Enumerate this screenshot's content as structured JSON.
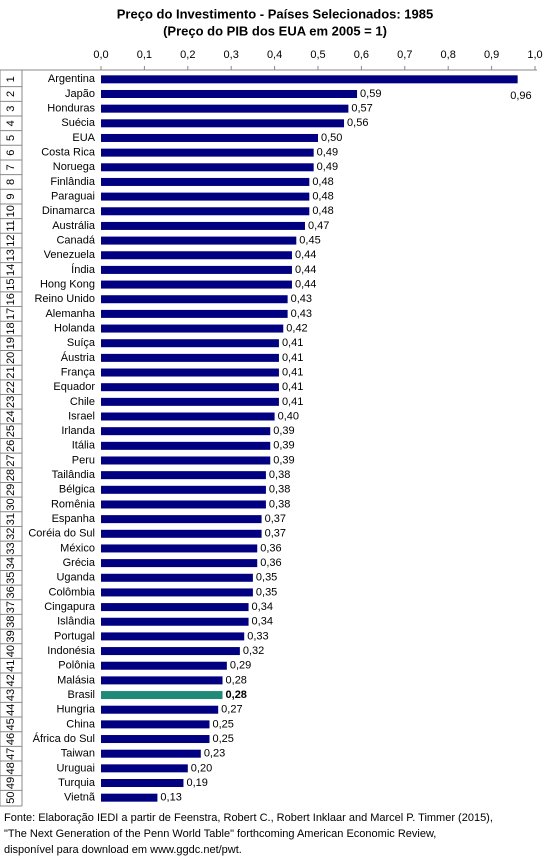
{
  "chart_data": {
    "type": "bar",
    "orientation": "horizontal",
    "title": "Preço do Investimento - Países Selecionados: 1985",
    "subtitle": "(Preço do PIB dos EUA em 2005 = 1)",
    "ranks": [
      1,
      2,
      3,
      4,
      5,
      6,
      7,
      8,
      9,
      10,
      11,
      12,
      13,
      14,
      15,
      16,
      17,
      18,
      19,
      20,
      21,
      22,
      23,
      24,
      25,
      26,
      27,
      28,
      29,
      30,
      31,
      32,
      33,
      34,
      35,
      36,
      37,
      38,
      39,
      40,
      41,
      42,
      43,
      44,
      45,
      46,
      47,
      48,
      49,
      50
    ],
    "categories": [
      "Argentina",
      "Japão",
      "Honduras",
      "Suécia",
      "EUA",
      "Costa Rica",
      "Noruega",
      "Finlândia",
      "Paraguai",
      "Dinamarca",
      "Austrália",
      "Canadá",
      "Venezuela",
      "Índia",
      "Hong Kong",
      "Reino Unido",
      "Alemanha",
      "Holanda",
      "Suíça",
      "Áustria",
      "França",
      "Equador",
      "Chile",
      "Israel",
      "Irlanda",
      "Itália",
      "Peru",
      "Tailândia",
      "Bélgica",
      "Romênia",
      "Espanha",
      "Coréia do Sul",
      "México",
      "Grécia",
      "Uganda",
      "Colômbia",
      "Cingapura",
      "Islândia",
      "Portugal",
      "Indonésia",
      "Polônia",
      "Malásia",
      "Brasil",
      "Hungria",
      "China",
      "África do Sul",
      "Taiwan",
      "Uruguai",
      "Turquia",
      "Vietnã"
    ],
    "values": [
      0.96,
      0.59,
      0.57,
      0.56,
      0.5,
      0.49,
      0.49,
      0.48,
      0.48,
      0.48,
      0.47,
      0.45,
      0.44,
      0.44,
      0.44,
      0.43,
      0.43,
      0.42,
      0.41,
      0.41,
      0.41,
      0.41,
      0.41,
      0.4,
      0.39,
      0.39,
      0.39,
      0.38,
      0.38,
      0.38,
      0.37,
      0.37,
      0.36,
      0.36,
      0.35,
      0.35,
      0.34,
      0.34,
      0.33,
      0.32,
      0.29,
      0.28,
      0.28,
      0.27,
      0.25,
      0.25,
      0.23,
      0.2,
      0.19,
      0.13
    ],
    "value_labels": [
      "0,96",
      "0,59",
      "0,57",
      "0,56",
      "0,50",
      "0,49",
      "0,49",
      "0,48",
      "0,48",
      "0,48",
      "0,47",
      "0,45",
      "0,44",
      "0,44",
      "0,44",
      "0,43",
      "0,43",
      "0,42",
      "0,41",
      "0,41",
      "0,41",
      "0,41",
      "0,41",
      "0,40",
      "0,39",
      "0,39",
      "0,39",
      "0,38",
      "0,38",
      "0,38",
      "0,37",
      "0,37",
      "0,36",
      "0,36",
      "0,35",
      "0,35",
      "0,34",
      "0,34",
      "0,33",
      "0,32",
      "0,29",
      "0,28",
      "0,28",
      "0,27",
      "0,25",
      "0,25",
      "0,23",
      "0,20",
      "0,19",
      "0,13"
    ],
    "color": "#000080",
    "highlight": {
      "index": 42,
      "color": "#1f8a78"
    },
    "xlim": [
      0,
      1
    ],
    "xticks": [
      {
        "value": 0,
        "label": "0,0"
      },
      {
        "value": 0.1,
        "label": "0,1"
      },
      {
        "value": 0.2,
        "label": "0,2"
      },
      {
        "value": 0.3,
        "label": "0,3"
      },
      {
        "value": 0.4,
        "label": "0,4"
      },
      {
        "value": 0.5,
        "label": "0,5"
      },
      {
        "value": 0.6,
        "label": "0,6"
      },
      {
        "value": 0.7,
        "label": "0,7"
      },
      {
        "value": 0.8,
        "label": "0,8"
      },
      {
        "value": 0.9,
        "label": "0,9"
      },
      {
        "value": 1,
        "label": "1,0"
      }
    ],
    "grid": false,
    "source": [
      "Fonte: Elaboração IEDI a partir de Feenstra, Robert C., Robert Inklaar and Marcel P. Timmer (2015),",
      "\"The Next Generation of the Penn World Table\" forthcoming American Economic Review,",
      "disponível para download em www.ggdc.net/pwt."
    ]
  }
}
